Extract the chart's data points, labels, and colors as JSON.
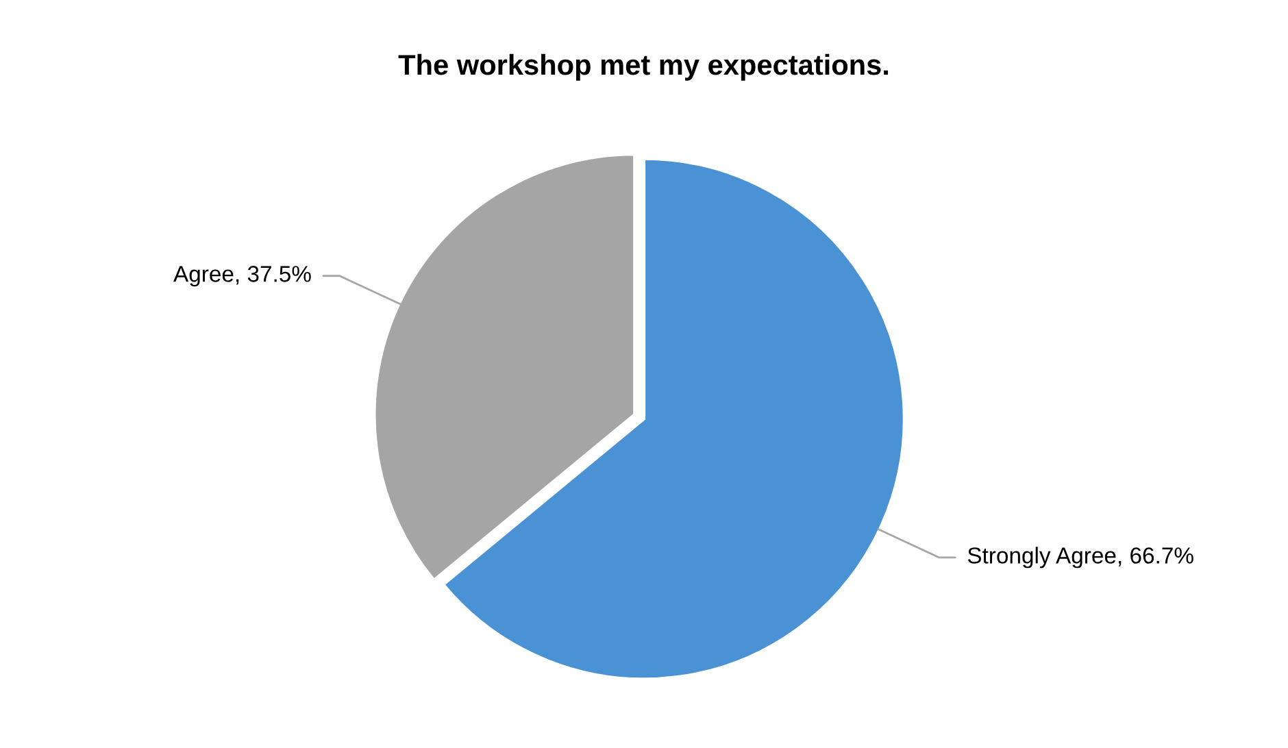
{
  "chart_data": {
    "type": "pie",
    "title": "The workshop met my expectations.",
    "categories": [
      "Strongly Agree",
      "Agree"
    ],
    "values": [
      66.7,
      37.5
    ],
    "value_labels": [
      "66.7%",
      "37.5%"
    ],
    "colors": [
      "#4a92d4",
      "#a5a5a5"
    ],
    "legend": false
  }
}
